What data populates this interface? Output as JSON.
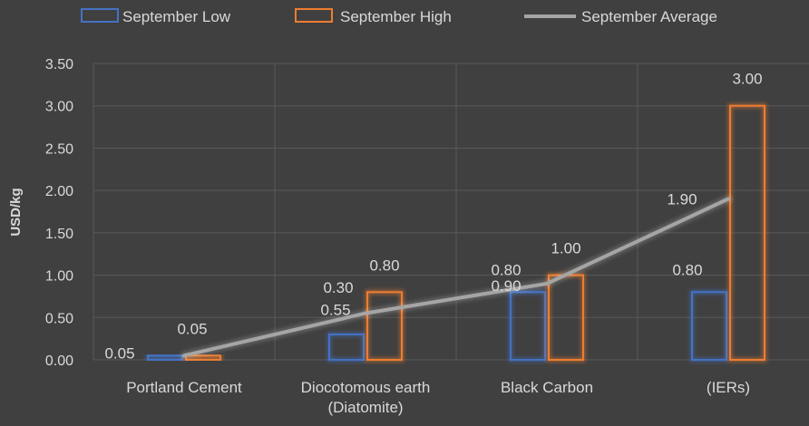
{
  "chart_data": {
    "type": "bar",
    "categories": [
      [
        "Portland Cement"
      ],
      [
        "Diocotomous earth",
        "(Diatomite)"
      ],
      [
        "Black Carbon"
      ],
      [
        "(IERs)"
      ]
    ],
    "series": [
      {
        "name": "September Low",
        "kind": "bar",
        "values": [
          0.05,
          0.3,
          0.8,
          0.8
        ],
        "labels": [
          "0.05",
          "0.30",
          "0.80",
          "0.80"
        ],
        "color": "#4472c4"
      },
      {
        "name": "September High",
        "kind": "bar",
        "values": [
          0.05,
          0.8,
          1.0,
          3.0
        ],
        "labels": [
          "0.05",
          "0.80",
          "1.00",
          "3.00"
        ],
        "color": "#ed7d31"
      },
      {
        "name": "September Average",
        "kind": "line",
        "values": [
          0.05,
          0.55,
          0.9,
          1.9
        ],
        "labels": [
          "0.05",
          "0.55",
          "0.90",
          "1.90"
        ],
        "color": "#a5a5a5"
      }
    ],
    "ylabel": "USD/kg",
    "ylim": [
      0,
      3.5
    ],
    "yticks": [
      "0.00",
      "0.50",
      "1.00",
      "1.50",
      "2.00",
      "2.50",
      "3.00",
      "3.50"
    ],
    "grid": true,
    "legend": "top"
  },
  "colors": {
    "background": "#404040",
    "grid": "#595959",
    "text": "#d9d9d9"
  }
}
